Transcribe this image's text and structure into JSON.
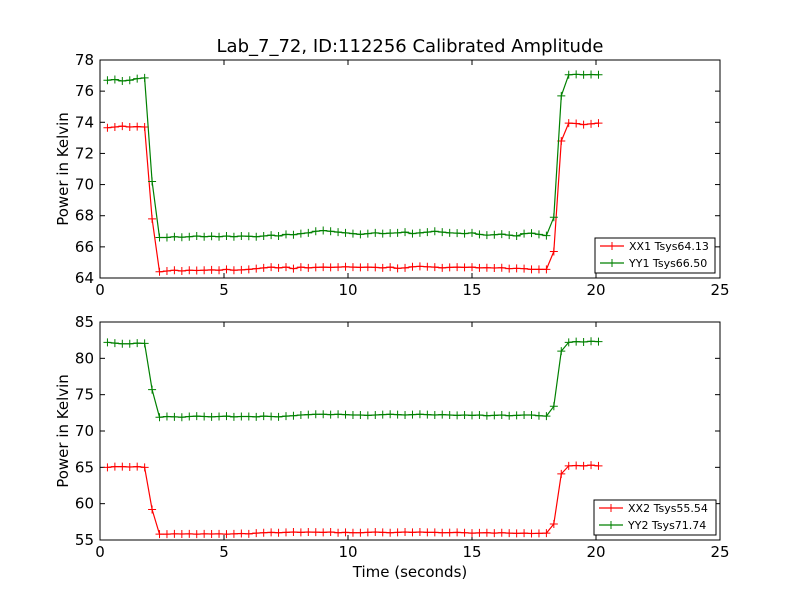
{
  "chart_data": [
    {
      "type": "line",
      "title": "Lab_7_72, ID:112256 Calibrated Amplitude",
      "xlabel": "",
      "ylabel": "Power in Kelvin",
      "xlim": [
        0,
        25
      ],
      "ylim": [
        64,
        78
      ],
      "xticks": [
        "0",
        "5",
        "10",
        "15",
        "20",
        "25"
      ],
      "yticks": [
        "64",
        "66",
        "68",
        "70",
        "72",
        "74",
        "76",
        "78"
      ],
      "grid": false,
      "legend_position": "lower-right",
      "x": [
        0.3,
        0.6,
        0.9,
        1.2,
        1.5,
        1.8,
        2.1,
        2.4,
        2.7,
        3.0,
        3.3,
        3.6,
        3.9,
        4.2,
        4.5,
        4.8,
        5.1,
        5.4,
        5.7,
        6.0,
        6.3,
        6.6,
        6.9,
        7.2,
        7.5,
        7.8,
        8.1,
        8.4,
        8.7,
        9.0,
        9.3,
        9.6,
        9.9,
        10.2,
        10.5,
        10.8,
        11.1,
        11.4,
        11.7,
        12.0,
        12.3,
        12.6,
        12.9,
        13.2,
        13.5,
        13.8,
        14.1,
        14.4,
        14.7,
        15.0,
        15.3,
        15.6,
        15.9,
        16.2,
        16.5,
        16.8,
        17.1,
        17.4,
        17.7,
        18.0,
        18.3,
        18.6,
        18.9,
        19.2,
        19.5,
        19.8,
        20.1
      ],
      "series": [
        {
          "name": "XX1 Tsys64.13",
          "color": "#ff0000",
          "values": [
            73.65,
            73.7,
            73.75,
            73.7,
            73.72,
            73.7,
            67.8,
            64.4,
            64.45,
            64.5,
            64.45,
            64.5,
            64.48,
            64.5,
            64.52,
            64.5,
            64.55,
            64.5,
            64.52,
            64.55,
            64.6,
            64.65,
            64.7,
            64.65,
            64.7,
            64.6,
            64.7,
            64.65,
            64.68,
            64.7,
            64.68,
            64.7,
            64.72,
            64.7,
            64.68,
            64.7,
            64.68,
            64.65,
            64.7,
            64.62,
            64.65,
            64.72,
            64.75,
            64.72,
            64.7,
            64.65,
            64.68,
            64.7,
            64.68,
            64.7,
            64.65,
            64.66,
            64.64,
            64.66,
            64.6,
            64.62,
            64.6,
            64.55,
            64.55,
            64.55,
            65.7,
            72.8,
            73.95,
            73.92,
            73.85,
            73.9,
            73.95
          ]
        },
        {
          "name": "YY1 Tsys66.50",
          "color": "#008000",
          "values": [
            76.7,
            76.75,
            76.65,
            76.7,
            76.8,
            76.85,
            70.2,
            66.6,
            66.6,
            66.65,
            66.62,
            66.65,
            66.7,
            66.65,
            66.68,
            66.65,
            66.7,
            66.65,
            66.7,
            66.68,
            66.65,
            66.7,
            66.75,
            66.7,
            66.8,
            66.78,
            66.85,
            66.9,
            67.0,
            67.05,
            67.0,
            66.95,
            66.9,
            66.85,
            66.8,
            66.85,
            66.9,
            66.85,
            66.88,
            66.9,
            66.95,
            66.85,
            66.9,
            66.95,
            67.0,
            66.95,
            66.9,
            66.88,
            66.85,
            66.9,
            66.8,
            66.75,
            66.78,
            66.82,
            66.75,
            66.7,
            66.85,
            66.88,
            66.8,
            66.72,
            67.9,
            75.7,
            77.05,
            77.08,
            77.05,
            77.07,
            77.05
          ]
        }
      ]
    },
    {
      "type": "line",
      "title": "",
      "xlabel": "Time (seconds)",
      "ylabel": "Power in Kelvin",
      "xlim": [
        0,
        25
      ],
      "ylim": [
        55,
        85
      ],
      "xticks": [
        "0",
        "5",
        "10",
        "15",
        "20",
        "25"
      ],
      "yticks": [
        "55",
        "60",
        "65",
        "70",
        "75",
        "80",
        "85"
      ],
      "grid": false,
      "legend_position": "lower-right",
      "x": [
        0.3,
        0.6,
        0.9,
        1.2,
        1.5,
        1.8,
        2.1,
        2.4,
        2.7,
        3.0,
        3.3,
        3.6,
        3.9,
        4.2,
        4.5,
        4.8,
        5.1,
        5.4,
        5.7,
        6.0,
        6.3,
        6.6,
        6.9,
        7.2,
        7.5,
        7.8,
        8.1,
        8.4,
        8.7,
        9.0,
        9.3,
        9.6,
        9.9,
        10.2,
        10.5,
        10.8,
        11.1,
        11.4,
        11.7,
        12.0,
        12.3,
        12.6,
        12.9,
        13.2,
        13.5,
        13.8,
        14.1,
        14.4,
        14.7,
        15.0,
        15.3,
        15.6,
        15.9,
        16.2,
        16.5,
        16.8,
        17.1,
        17.4,
        17.7,
        18.0,
        18.3,
        18.6,
        18.9,
        19.2,
        19.5,
        19.8,
        20.1
      ],
      "series": [
        {
          "name": "XX2 Tsys55.54",
          "color": "#ff0000",
          "values": [
            65.0,
            65.1,
            65.1,
            65.05,
            65.1,
            65.0,
            59.2,
            55.8,
            55.8,
            55.85,
            55.82,
            55.85,
            55.8,
            55.85,
            55.82,
            55.85,
            55.8,
            55.85,
            55.9,
            55.85,
            55.95,
            56.0,
            56.05,
            56.0,
            56.05,
            56.1,
            56.05,
            56.1,
            56.08,
            56.05,
            56.1,
            56.0,
            56.05,
            56.0,
            56.0,
            56.05,
            56.1,
            56.05,
            56.0,
            56.05,
            56.1,
            56.05,
            56.1,
            56.05,
            56.05,
            56.0,
            56.02,
            56.05,
            56.0,
            55.95,
            55.98,
            56.0,
            55.95,
            56.0,
            55.95,
            55.92,
            55.95,
            55.9,
            55.92,
            55.95,
            57.2,
            64.1,
            65.2,
            65.25,
            65.2,
            65.3,
            65.2
          ]
        },
        {
          "name": "YY2 Tsys71.74",
          "color": "#008000",
          "values": [
            82.2,
            82.1,
            82.0,
            82.0,
            82.1,
            82.05,
            75.7,
            71.9,
            72.0,
            71.95,
            71.9,
            72.0,
            72.05,
            72.0,
            71.95,
            72.0,
            72.05,
            71.95,
            72.0,
            72.0,
            71.95,
            72.05,
            72.0,
            71.95,
            72.05,
            72.1,
            72.2,
            72.25,
            72.3,
            72.3,
            72.25,
            72.3,
            72.25,
            72.2,
            72.2,
            72.15,
            72.2,
            72.25,
            72.3,
            72.25,
            72.2,
            72.25,
            72.3,
            72.25,
            72.2,
            72.25,
            72.2,
            72.15,
            72.2,
            72.15,
            72.2,
            72.1,
            72.15,
            72.2,
            72.1,
            72.15,
            72.2,
            72.2,
            72.1,
            72.05,
            73.4,
            81.0,
            82.2,
            82.3,
            82.25,
            82.35,
            82.3
          ]
        }
      ]
    }
  ]
}
